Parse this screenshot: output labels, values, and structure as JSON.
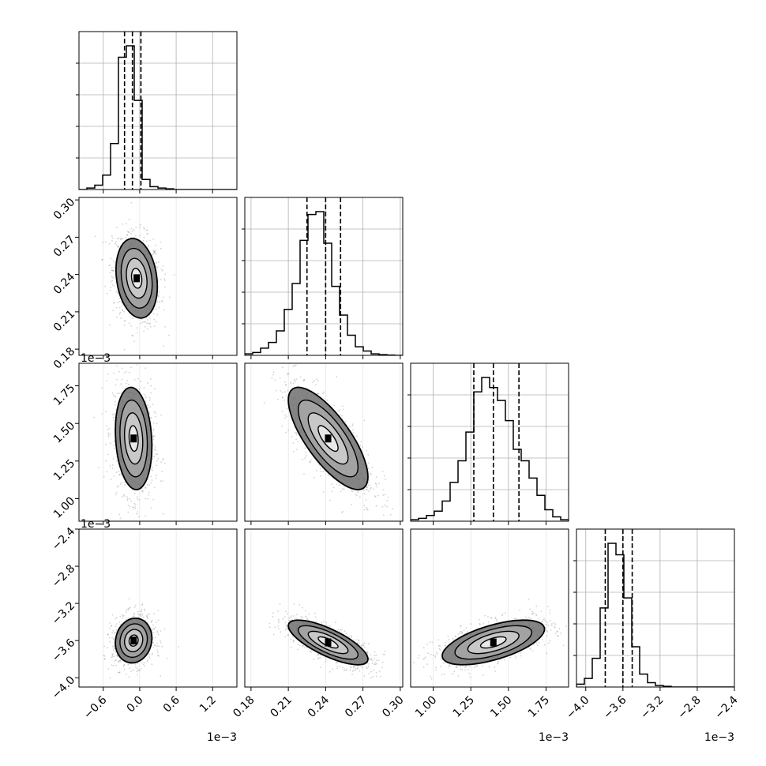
{
  "chart_data": {
    "type": "corner",
    "parameters": [
      {
        "range": [
          -1.0,
          1.6
        ],
        "ticks": [
          -0.6,
          0.0,
          0.6,
          1.2
        ],
        "tick_labels": [
          "−0.6",
          "0.0",
          "0.6",
          "1.2"
        ],
        "offset_text": "1e−3"
      },
      {
        "range": [
          0.175,
          0.302
        ],
        "ticks": [
          0.18,
          0.21,
          0.24,
          0.27,
          0.3
        ],
        "tick_labels": [
          "0.18",
          "0.21",
          "0.24",
          "0.27",
          "0.30"
        ],
        "offset_text": ""
      },
      {
        "range": [
          0.85,
          1.9
        ],
        "ticks": [
          1.0,
          1.25,
          1.5,
          1.75
        ],
        "tick_labels": [
          "1.00",
          "1.25",
          "1.50",
          "1.75"
        ],
        "offset_text": "1e−3"
      },
      {
        "range": [
          -4.1,
          -2.4
        ],
        "ticks": [
          -4.0,
          -3.6,
          -3.2,
          -2.8,
          -2.4
        ],
        "tick_labels": [
          "−4.0",
          "−3.6",
          "−3.2",
          "−2.8",
          "−2.4"
        ],
        "offset_text": "1e−3"
      }
    ],
    "histograms": [
      {
        "counts": [
          0,
          0.01,
          0.03,
          0.1,
          0.32,
          0.92,
          1.0,
          0.62,
          0.07,
          0.02,
          0.01,
          0.005,
          0,
          0,
          0,
          0,
          0,
          0,
          0,
          0
        ],
        "quantiles": [
          -0.25,
          -0.12,
          0.02
        ]
      },
      {
        "counts": [
          0.01,
          0.02,
          0.05,
          0.09,
          0.17,
          0.32,
          0.5,
          0.8,
          0.98,
          1.0,
          0.78,
          0.48,
          0.28,
          0.14,
          0.06,
          0.03,
          0.01,
          0.005,
          0.002,
          0
        ],
        "quantiles": [
          0.225,
          0.24,
          0.252
        ]
      },
      {
        "counts": [
          0.01,
          0.02,
          0.04,
          0.07,
          0.14,
          0.27,
          0.42,
          0.62,
          0.9,
          1.0,
          0.93,
          0.84,
          0.7,
          0.5,
          0.42,
          0.3,
          0.18,
          0.08,
          0.03,
          0.01
        ],
        "quantiles": [
          1.27,
          1.4,
          1.57
        ]
      },
      {
        "counts": [
          0.02,
          0.06,
          0.2,
          0.55,
          1.0,
          0.92,
          0.62,
          0.28,
          0.09,
          0.03,
          0.01,
          0.005,
          0,
          0,
          0,
          0,
          0,
          0,
          0,
          0
        ],
        "quantiles": [
          -3.79,
          -3.6,
          -3.5
        ]
      }
    ],
    "pairs": [
      {
        "row": 1,
        "col": 0,
        "mean": [
          -0.05,
          0.237
        ],
        "sd": [
          0.17,
          0.016
        ],
        "corr": -0.2
      },
      {
        "row": 2,
        "col": 0,
        "mean": [
          -0.1,
          1.4
        ],
        "sd": [
          0.15,
          0.17
        ],
        "corr": -0.15
      },
      {
        "row": 2,
        "col": 1,
        "mean": [
          0.242,
          1.4
        ],
        "sd": [
          0.016,
          0.17
        ],
        "corr": -0.75
      },
      {
        "row": 3,
        "col": 0,
        "mean": [
          -0.1,
          -3.6
        ],
        "sd": [
          0.15,
          0.12
        ],
        "corr": 0.1
      },
      {
        "row": 3,
        "col": 1,
        "mean": [
          0.242,
          -3.62
        ],
        "sd": [
          0.016,
          0.12
        ],
        "corr": -0.75
      },
      {
        "row": 3,
        "col": 2,
        "mean": [
          1.4,
          -3.62
        ],
        "sd": [
          0.17,
          0.12
        ],
        "corr": 0.6
      }
    ],
    "contour_levels": [
      0.5,
      1.0,
      1.5,
      2.0
    ],
    "grid": true,
    "title": "",
    "legend": "none"
  },
  "colors": {
    "line": "#000000",
    "points": "#7f7f7f",
    "grid": "#b0b0b0",
    "frame": "#000000"
  }
}
